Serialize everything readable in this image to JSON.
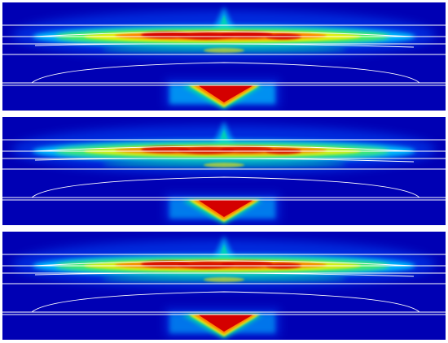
{
  "figure": {
    "panels": [
      {
        "id": "panel-1",
        "band_intensity": 1.0,
        "bottom_intensity": 1.0
      },
      {
        "id": "panel-2",
        "band_intensity": 0.85,
        "bottom_intensity": 0.8
      },
      {
        "id": "panel-3",
        "band_intensity": 0.9,
        "bottom_intensity": 0.75
      }
    ],
    "colormap": [
      "#0000b4",
      "#0050ff",
      "#00c8ff",
      "#00e0a0",
      "#60ff30",
      "#ffee00",
      "#ff7800",
      "#d40000"
    ]
  }
}
